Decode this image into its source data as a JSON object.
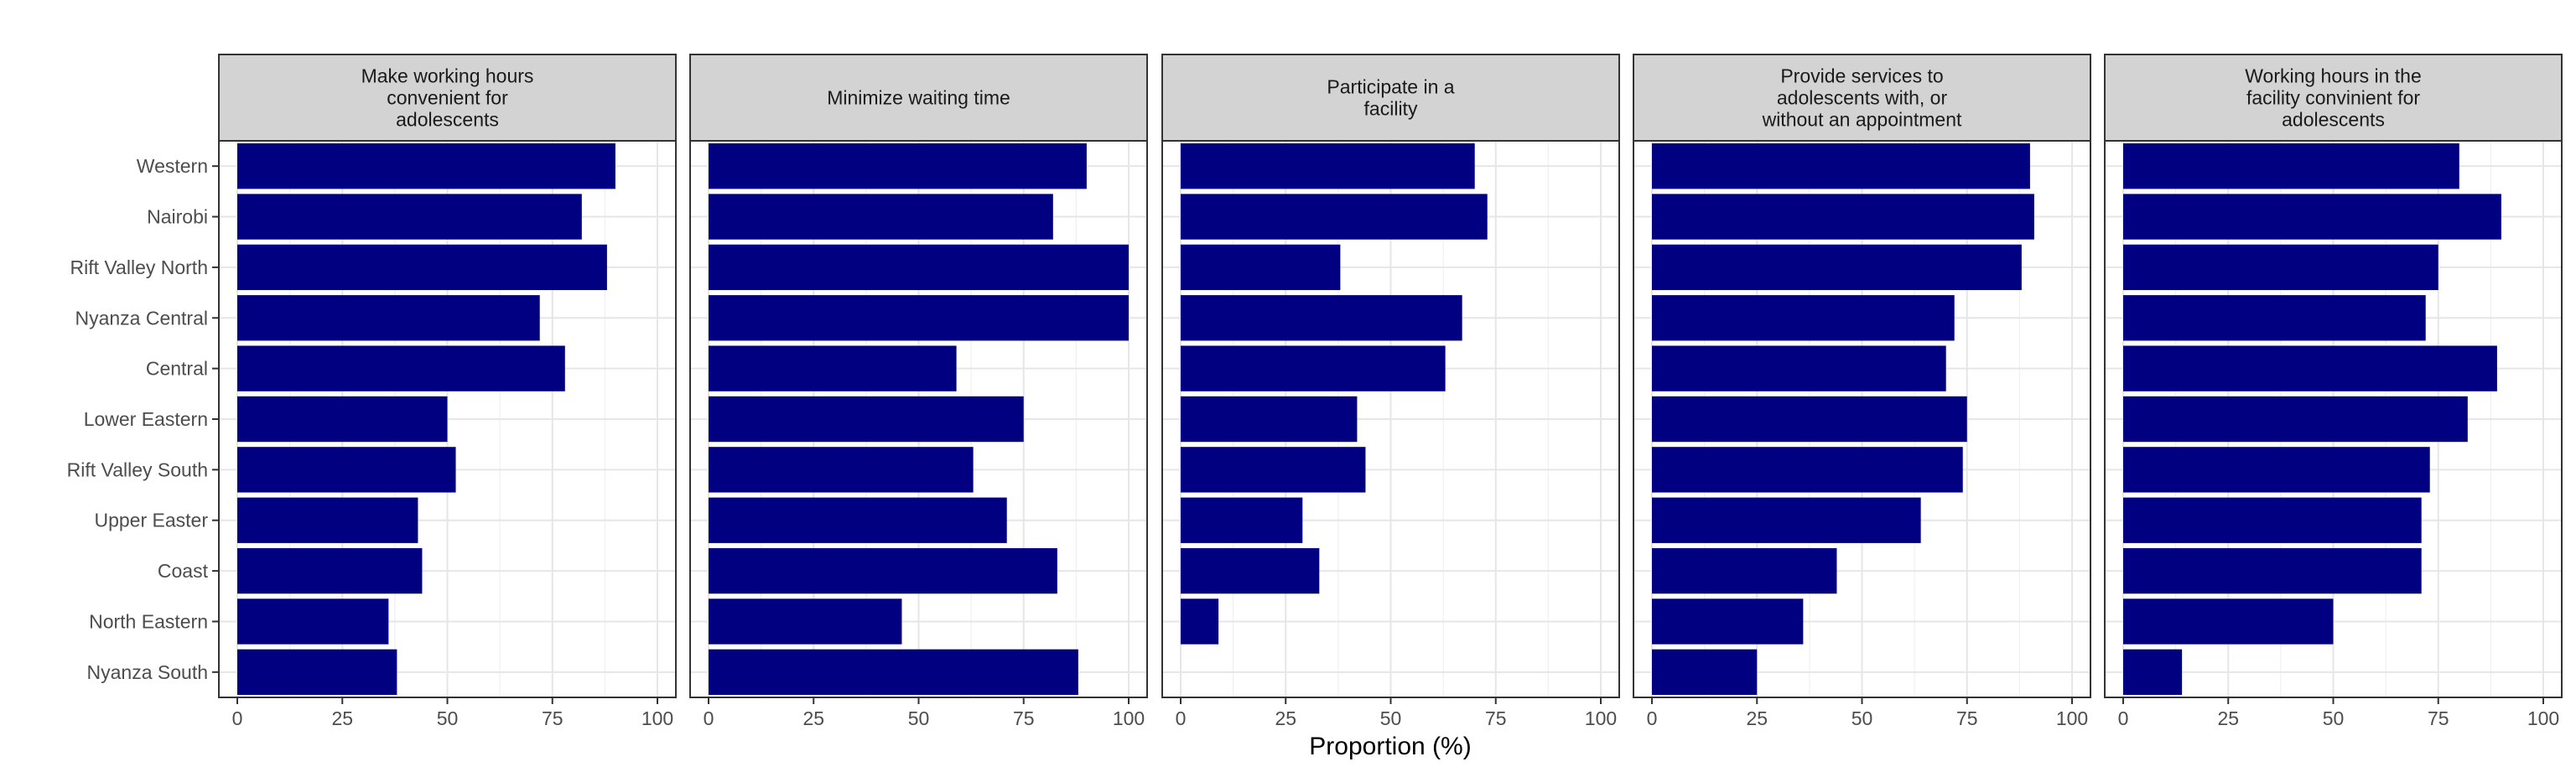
{
  "chart_data": {
    "type": "bar",
    "orientation": "horizontal",
    "facets": true,
    "bar_color": "#000080",
    "strip_fill": "#d3d3d3",
    "grid": true,
    "xlabel": "Proportion (%)",
    "ylabel": "",
    "xlim": [
      0,
      100
    ],
    "xticks": [
      0,
      25,
      50,
      75,
      100
    ],
    "categories": [
      "Western",
      "Nairobi",
      "Rift Valley North",
      "Nyanza Central",
      "Central",
      "Lower Eastern",
      "Rift Valley South",
      "Upper Easter",
      "Coast",
      "North Eastern",
      "Nyanza South"
    ],
    "panels": [
      {
        "title": [
          "Make working hours",
          "convenient for",
          "adolescents"
        ],
        "values": [
          90,
          82,
          88,
          72,
          78,
          50,
          52,
          43,
          44,
          36,
          38
        ]
      },
      {
        "title": [
          "Minimize waiting time"
        ],
        "values": [
          90,
          82,
          100,
          100,
          59,
          75,
          63,
          71,
          83,
          46,
          88
        ]
      },
      {
        "title": [
          "Participate in a",
          "facility"
        ],
        "values": [
          70,
          73,
          38,
          67,
          63,
          42,
          44,
          29,
          33,
          9,
          0
        ]
      },
      {
        "title": [
          "Provide services to",
          "adolescents with, or",
          "without an appointment"
        ],
        "values": [
          90,
          91,
          88,
          72,
          70,
          75,
          74,
          64,
          44,
          36,
          25
        ]
      },
      {
        "title": [
          "Working hours in the",
          "facility convinient for",
          "adolescents"
        ],
        "values": [
          80,
          90,
          75,
          72,
          89,
          82,
          73,
          71,
          71,
          50,
          14
        ]
      }
    ]
  }
}
